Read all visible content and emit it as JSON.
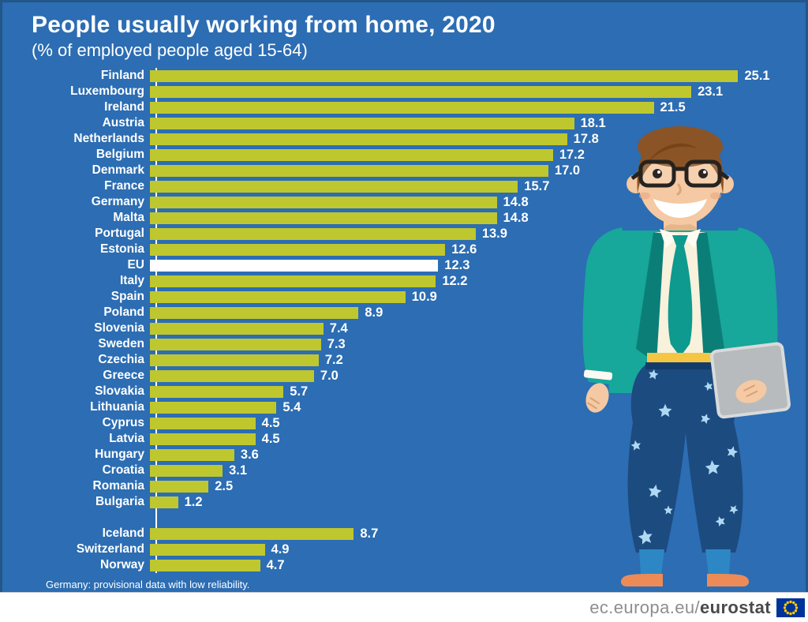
{
  "title": "People usually working from home, 2020",
  "subtitle": "(% of employed people aged 15-64)",
  "footnote": "Germany: provisional data with low reliability.",
  "footer": {
    "site_regular": "ec.europa.eu/",
    "site_bold": "eurostat",
    "flag_icon": "eu-flag-icon"
  },
  "colors": {
    "background": "#2C6DB3",
    "bar": "#BFC72E",
    "highlight_bar": "#FFFFFF",
    "text": "#FFFFFF",
    "footer_text": "#8D8D8D",
    "footer_text_bold": "#4A4A4A",
    "flag_blue": "#003399",
    "flag_stars": "#FFCC00"
  },
  "chart_data": {
    "type": "bar",
    "orientation": "horizontal",
    "title": "People usually working from home, 2020",
    "subtitle": "(% of employed people aged 15-64)",
    "unit": "% of employed people aged 15-64",
    "xlim": [
      0,
      26
    ],
    "grid": false,
    "legend": "none",
    "value_labels": true,
    "highlight_category": "EU",
    "group_break_before": "Iceland",
    "categories": [
      "Finland",
      "Luxembourg",
      "Ireland",
      "Austria",
      "Netherlands",
      "Belgium",
      "Denmark",
      "France",
      "Germany",
      "Malta",
      "Portugal",
      "Estonia",
      "EU",
      "Italy",
      "Spain",
      "Poland",
      "Slovenia",
      "Sweden",
      "Czechia",
      "Greece",
      "Slovakia",
      "Lithuania",
      "Cyprus",
      "Latvia",
      "Hungary",
      "Croatia",
      "Romania",
      "Bulgaria",
      "Iceland",
      "Switzerland",
      "Norway"
    ],
    "values": [
      25.1,
      23.1,
      21.5,
      18.1,
      17.8,
      17.2,
      17.0,
      15.7,
      14.8,
      14.8,
      13.9,
      12.6,
      12.3,
      12.2,
      10.9,
      8.9,
      7.4,
      7.3,
      7.2,
      7.0,
      5.7,
      5.4,
      4.5,
      4.5,
      3.6,
      3.1,
      2.5,
      1.2,
      8.7,
      4.9,
      4.7
    ]
  }
}
